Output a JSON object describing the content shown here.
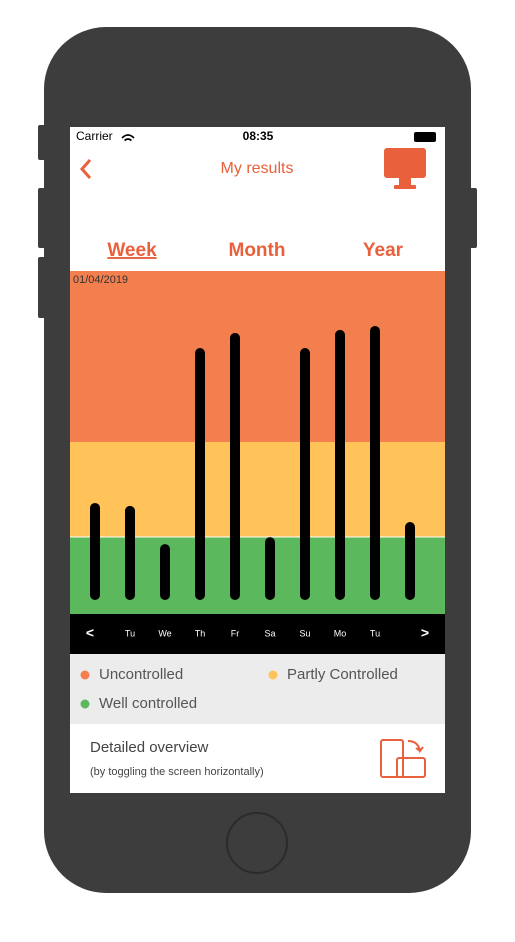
{
  "status_bar": {
    "carrier": "Carrier",
    "time": "08:35"
  },
  "nav": {
    "title": "My results"
  },
  "tabs": [
    "Week",
    "Month",
    "Year"
  ],
  "chart_data": {
    "type": "bar",
    "date": "01/04/2019",
    "categories": [
      null,
      "Tu",
      "We",
      "Th",
      "Fr",
      "Sa",
      "Su",
      "Mo",
      "Tu",
      null
    ],
    "values": [
      29.5,
      28.6,
      17,
      76.6,
      81.2,
      19.1,
      76.6,
      82.1,
      83.3,
      23.7
    ],
    "color": "#000000",
    "ylim": [
      0,
      100
    ],
    "bands": [
      {
        "name": "Uncontrolled",
        "color": "#f47f4e"
      },
      {
        "name": "Partly Controlled",
        "color": "#ffc35a"
      },
      {
        "name": "Well controlled",
        "color": "#5cb85c"
      }
    ],
    "pager": {
      "prev": "<",
      "next": ">"
    }
  },
  "overview": {
    "title": "Detailed overview",
    "subtitle": "(by toggling the screen horizontally)"
  }
}
